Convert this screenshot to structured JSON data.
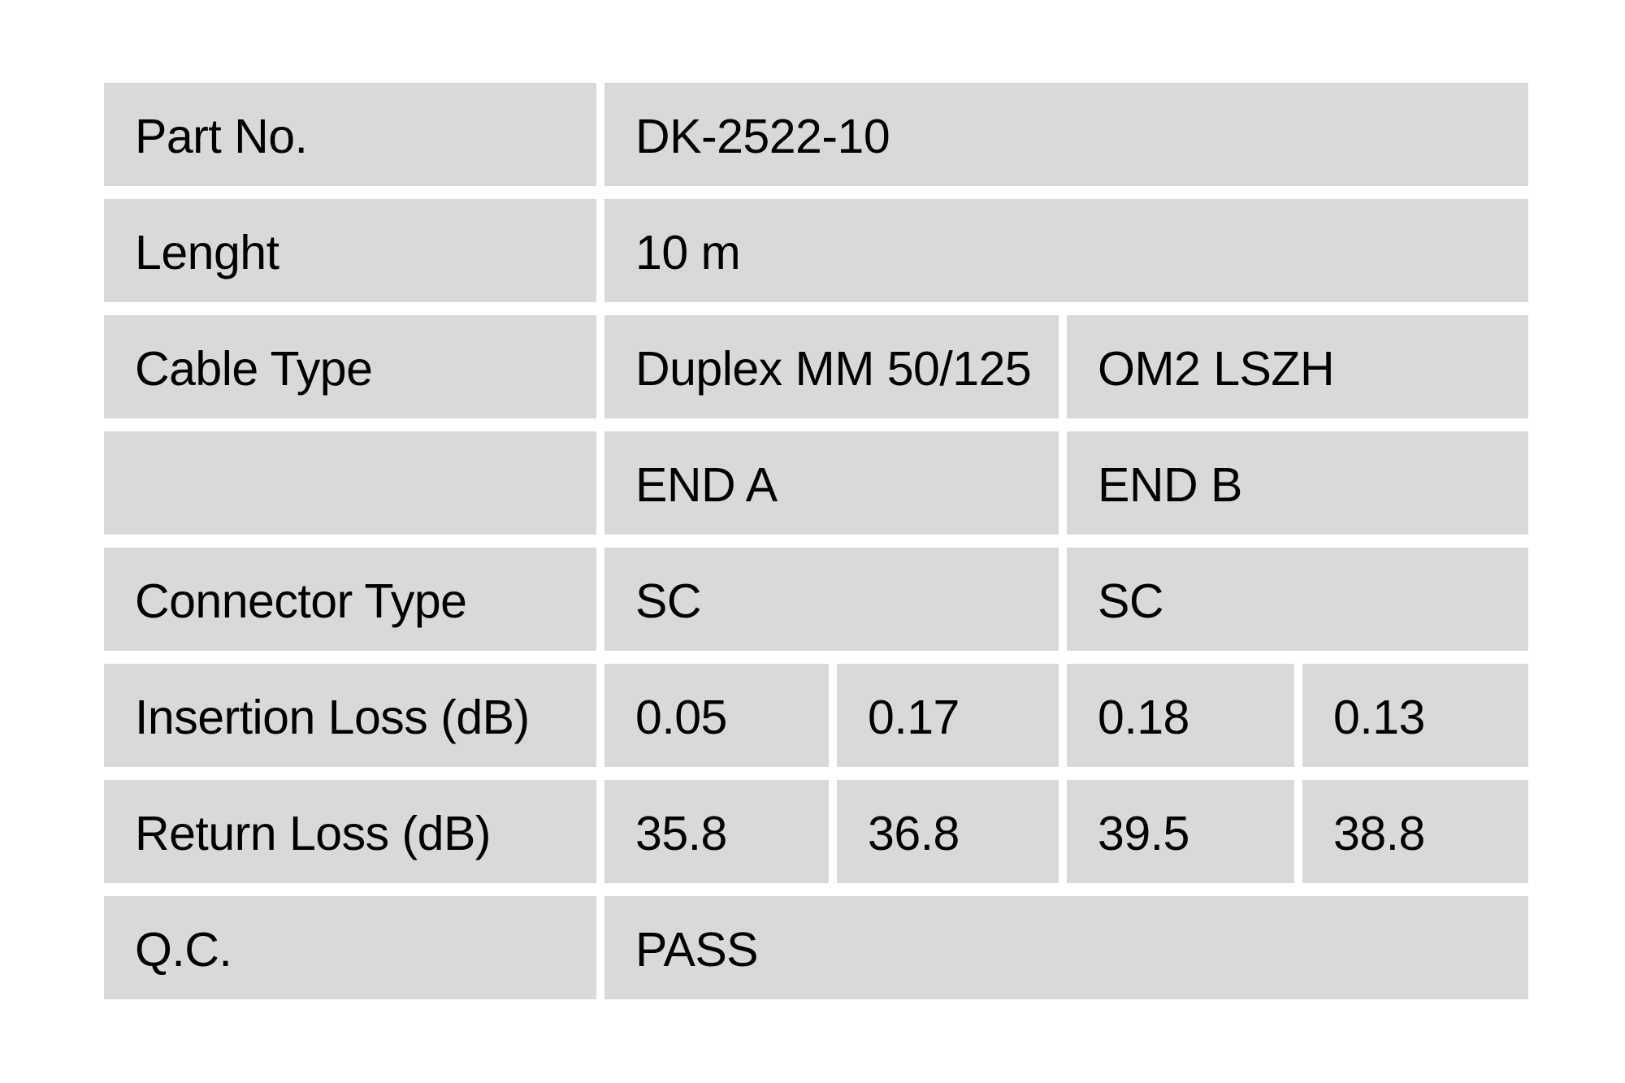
{
  "colors": {
    "page_bg": "#ffffff",
    "cell_bg": "#d9d9d9",
    "text": "#000000"
  },
  "table": {
    "rows": [
      {
        "label": "Part No.",
        "value": "DK-2522-10"
      },
      {
        "label": "Lenght",
        "value": "10 m"
      },
      {
        "label": "Cable Type",
        "end_a": "Duplex MM 50/125",
        "end_b": "OM2 LSZH"
      },
      {
        "label": "",
        "end_a": "END A",
        "end_b": "END B"
      },
      {
        "label": "Connector Type",
        "end_a": "SC",
        "end_b": "SC"
      },
      {
        "label": "Insertion Loss (dB)",
        "values": [
          "0.05",
          "0.17",
          "0.18",
          "0.13"
        ]
      },
      {
        "label": "Return Loss (dB)",
        "values": [
          "35.8",
          "36.8",
          "39.5",
          "38.8"
        ]
      },
      {
        "label": "Q.C.",
        "value": "PASS"
      }
    ]
  }
}
